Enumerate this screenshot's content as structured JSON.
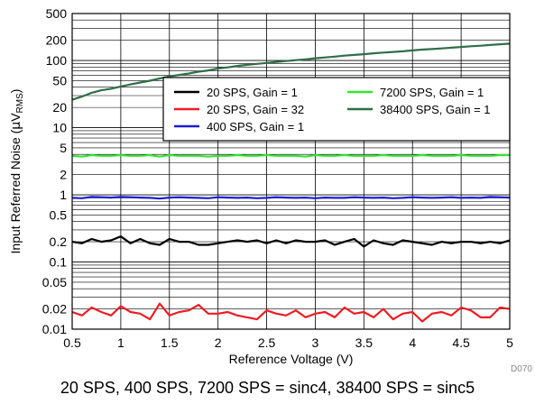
{
  "chart_data": {
    "type": "line",
    "xlabel": "Reference Voltage  (V)",
    "ylabel_main": "Input Referred Noise (",
    "ylabel_mu": "µ",
    "ylabel_unit": "V",
    "ylabel_sub": "RMS",
    "ylabel_end": ")",
    "xlim": [
      0.5,
      5
    ],
    "ylim": [
      0.01,
      500
    ],
    "yscale": "log",
    "grid": true,
    "legend_position": "upper-right",
    "x_ticks": [
      "0.5",
      "1",
      "1.5",
      "2",
      "2.5",
      "3",
      "3.5",
      "4",
      "4.5",
      "5"
    ],
    "y_ticks": [
      {
        "v": 0.01,
        "label": "0.01"
      },
      {
        "v": 0.02,
        "label": "0.02"
      },
      {
        "v": 0.05,
        "label": "0.05"
      },
      {
        "v": 0.1,
        "label": "0.1"
      },
      {
        "v": 0.2,
        "label": "0.2"
      },
      {
        "v": 0.5,
        "label": "0.5"
      },
      {
        "v": 1,
        "label": "1"
      },
      {
        "v": 2,
        "label": "2"
      },
      {
        "v": 5,
        "label": "5"
      },
      {
        "v": 10,
        "label": "10"
      },
      {
        "v": 20,
        "label": "20"
      },
      {
        "v": 50,
        "label": "50"
      },
      {
        "v": 100,
        "label": "100"
      },
      {
        "v": 200,
        "label": "200"
      },
      {
        "v": 500,
        "label": "500"
      }
    ],
    "x": [
      0.5,
      0.6,
      0.7,
      0.8,
      0.9,
      1.0,
      1.1,
      1.2,
      1.3,
      1.4,
      1.5,
      1.6,
      1.7,
      1.8,
      1.9,
      2.0,
      2.1,
      2.2,
      2.3,
      2.4,
      2.5,
      2.6,
      2.7,
      2.8,
      2.9,
      3.0,
      3.1,
      3.2,
      3.3,
      3.4,
      3.5,
      3.6,
      3.7,
      3.8,
      3.9,
      4.0,
      4.1,
      4.2,
      4.3,
      4.4,
      4.5,
      4.6,
      4.7,
      4.8,
      4.9,
      5.0
    ],
    "series": [
      {
        "name": "20 SPS, Gain = 1",
        "color": "#000000",
        "values": [
          0.2,
          0.19,
          0.22,
          0.2,
          0.21,
          0.24,
          0.19,
          0.22,
          0.19,
          0.18,
          0.22,
          0.2,
          0.2,
          0.18,
          0.18,
          0.19,
          0.2,
          0.21,
          0.2,
          0.21,
          0.19,
          0.21,
          0.19,
          0.21,
          0.2,
          0.2,
          0.21,
          0.18,
          0.2,
          0.22,
          0.17,
          0.21,
          0.19,
          0.18,
          0.21,
          0.2,
          0.19,
          0.18,
          0.2,
          0.19,
          0.2,
          0.2,
          0.19,
          0.2,
          0.19,
          0.21
        ]
      },
      {
        "name": "20 SPS, Gain = 32",
        "color": "#ee1c24",
        "values": [
          0.018,
          0.016,
          0.021,
          0.018,
          0.016,
          0.022,
          0.018,
          0.017,
          0.014,
          0.024,
          0.016,
          0.018,
          0.019,
          0.023,
          0.017,
          0.017,
          0.018,
          0.016,
          0.015,
          0.014,
          0.019,
          0.017,
          0.016,
          0.019,
          0.015,
          0.017,
          0.018,
          0.015,
          0.021,
          0.017,
          0.018,
          0.015,
          0.02,
          0.014,
          0.017,
          0.018,
          0.013,
          0.017,
          0.018,
          0.016,
          0.021,
          0.019,
          0.015,
          0.015,
          0.021,
          0.02
        ]
      },
      {
        "name": "400 SPS, Gain = 1",
        "color": "#1c1cd6",
        "values": [
          0.9,
          0.89,
          0.93,
          0.92,
          0.91,
          0.93,
          0.92,
          0.91,
          0.9,
          0.88,
          0.91,
          0.92,
          0.91,
          0.9,
          0.89,
          0.92,
          0.91,
          0.9,
          0.91,
          0.89,
          0.9,
          0.92,
          0.91,
          0.9,
          0.91,
          0.89,
          0.91,
          0.9,
          0.9,
          0.92,
          0.91,
          0.9,
          0.91,
          0.89,
          0.9,
          0.92,
          0.91,
          0.9,
          0.91,
          0.92,
          0.9,
          0.91,
          0.9,
          0.93,
          0.92,
          0.91
        ]
      },
      {
        "name": "7200 SPS, Gain = 1",
        "color": "#33e633",
        "values": [
          3.8,
          3.7,
          3.9,
          3.8,
          3.8,
          3.9,
          3.8,
          3.8,
          3.9,
          3.7,
          3.9,
          3.8,
          3.8,
          3.8,
          3.7,
          3.8,
          3.8,
          3.9,
          3.8,
          3.8,
          3.9,
          3.8,
          3.8,
          3.8,
          3.7,
          3.9,
          3.8,
          3.8,
          3.9,
          3.8,
          3.8,
          3.8,
          3.9,
          3.8,
          3.8,
          3.8,
          3.9,
          3.8,
          3.8,
          3.8,
          3.9,
          3.8,
          3.8,
          3.8,
          3.9,
          3.9
        ]
      },
      {
        "name": "38400 SPS, Gain = 1",
        "color": "#2f6e47",
        "values": [
          26,
          29,
          33,
          36,
          38,
          41,
          44,
          47,
          50,
          54,
          58,
          61,
          64,
          68,
          71,
          76,
          79,
          83,
          86,
          89,
          92,
          95,
          98,
          101,
          104,
          108,
          111,
          114,
          118,
          121,
          124,
          128,
          131,
          134,
          137,
          141,
          145,
          148,
          151,
          155,
          159,
          163,
          166,
          170,
          174,
          178
        ]
      }
    ],
    "annotation": "D070",
    "caption": "20 SPS, 400 SPS, 7200 SPS = sinc4, 38400 SPS = sinc5"
  }
}
